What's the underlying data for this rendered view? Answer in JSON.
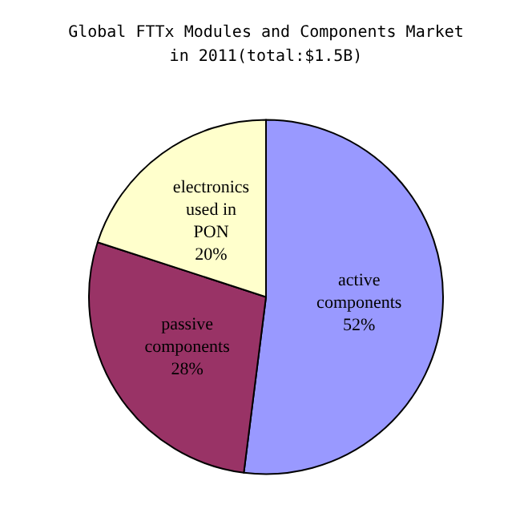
{
  "chart_data": {
    "type": "pie",
    "title": "Global FTTx Modules and Components Market\nin 2011(total:$1.5B)",
    "categories": [
      "active\ncomponents",
      "passive\ncomponents",
      "electronics\nused in\nPON"
    ],
    "values": [
      52,
      28,
      20
    ],
    "value_labels": [
      "52%",
      "28%",
      "20%"
    ],
    "colors": [
      "#9999ff",
      "#993366",
      "#ffffcc"
    ]
  }
}
